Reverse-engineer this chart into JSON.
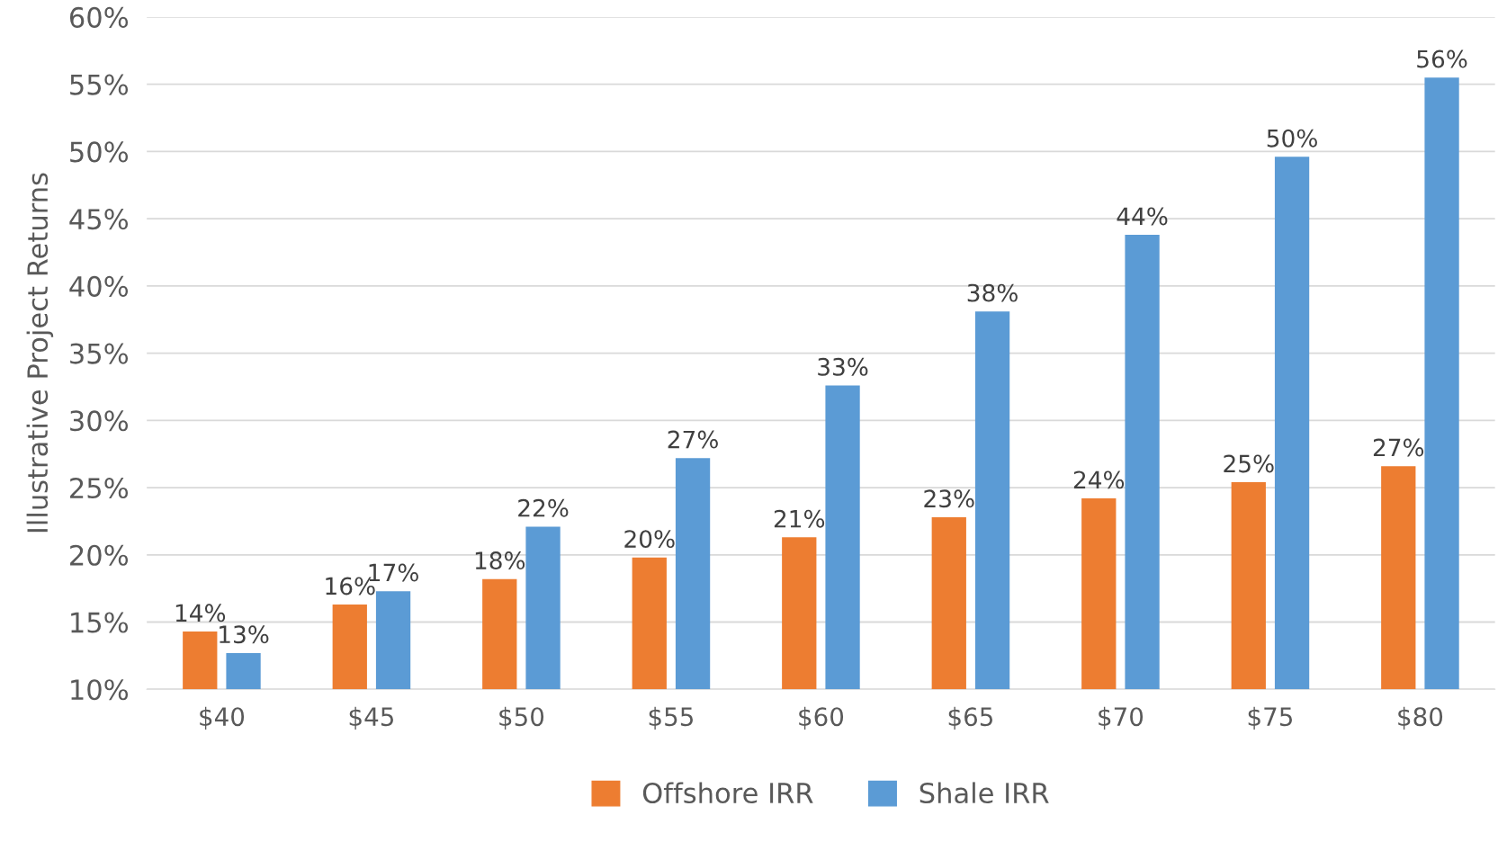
{
  "chart_data": {
    "type": "bar",
    "ylabel": "Illustrative Project Returns",
    "categories": [
      "$40",
      "$45",
      "$50",
      "$55",
      "$60",
      "$65",
      "$70",
      "$75",
      "$80"
    ],
    "series": [
      {
        "name": "Offshore IRR",
        "color": "#ed7d31",
        "values": [
          14.3,
          16.3,
          18.2,
          19.8,
          21.3,
          22.8,
          24.2,
          25.4,
          26.6
        ],
        "value_labels": [
          "14%",
          "16%",
          "18%",
          "20%",
          "21%",
          "23%",
          "24%",
          "25%",
          "27%"
        ]
      },
      {
        "name": "Shale IRR",
        "color": "#5b9bd5",
        "values": [
          12.7,
          17.3,
          22.1,
          27.2,
          32.6,
          38.1,
          43.8,
          49.6,
          55.5
        ],
        "value_labels": [
          "13%",
          "17%",
          "22%",
          "27%",
          "33%",
          "38%",
          "44%",
          "50%",
          "56%"
        ]
      }
    ],
    "ylim": [
      10,
      60
    ],
    "yticks": [
      {
        "value": 10,
        "label": "10%"
      },
      {
        "value": 15,
        "label": "15%"
      },
      {
        "value": 20,
        "label": "20%"
      },
      {
        "value": 25,
        "label": "25%"
      },
      {
        "value": 30,
        "label": "30%"
      },
      {
        "value": 35,
        "label": "35%"
      },
      {
        "value": 40,
        "label": "40%"
      },
      {
        "value": 45,
        "label": "45%"
      },
      {
        "value": 50,
        "label": "50%"
      },
      {
        "value": 55,
        "label": "55%"
      },
      {
        "value": 60,
        "label": "60%"
      }
    ],
    "grid": "y",
    "legend": "bottom"
  }
}
